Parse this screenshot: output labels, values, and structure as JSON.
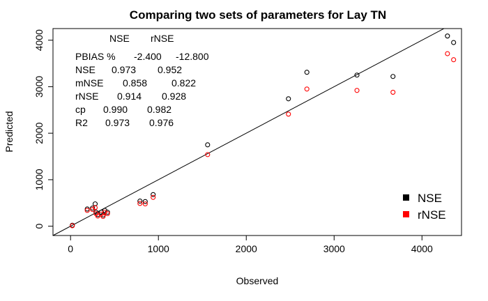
{
  "chart_data": {
    "type": "scatter",
    "title": "Comparing two sets of parameters for Lay TN",
    "xlabel": "Observed",
    "ylabel": "Predicted",
    "xlim": [
      -200,
      4450
    ],
    "ylim": [
      -200,
      4250
    ],
    "x_ticks": [
      0,
      1000,
      2000,
      3000,
      4000
    ],
    "y_ticks": [
      0,
      1000,
      2000,
      3000,
      4000
    ],
    "x_tick_labels": [
      "0",
      "1000",
      "2000",
      "3000",
      "4000"
    ],
    "y_tick_labels": [
      "0",
      "1000",
      "2000",
      "3000",
      "4000"
    ],
    "reference_line": "1:1",
    "grid": false,
    "legend_position": "bottom-right",
    "series": [
      {
        "name": "NSE",
        "color": "#000000",
        "x": [
          20,
          190,
          250,
          280,
          290,
          310,
          350,
          370,
          390,
          420,
          790,
          850,
          940,
          1560,
          2480,
          2690,
          3260,
          3670,
          4290,
          4360
        ],
        "y": [
          20,
          370,
          390,
          480,
          300,
          250,
          300,
          240,
          340,
          300,
          540,
          530,
          680,
          1750,
          2740,
          3310,
          3250,
          3220,
          4090,
          3950
        ]
      },
      {
        "name": "rNSE",
        "color": "#ff0000",
        "x": [
          20,
          190,
          250,
          280,
          290,
          310,
          350,
          370,
          390,
          420,
          790,
          850,
          940,
          1560,
          2480,
          2690,
          3260,
          3670,
          4290,
          4360
        ],
        "y": [
          10,
          340,
          360,
          400,
          270,
          220,
          260,
          210,
          300,
          270,
          490,
          480,
          620,
          1540,
          2410,
          2950,
          2920,
          2880,
          3710,
          3580
        ]
      }
    ],
    "stats_table": {
      "header": [
        "NSE",
        "rNSE"
      ],
      "rows": [
        {
          "label": "PBIAS %",
          "nse": "-2.400",
          "rnse": "-12.800"
        },
        {
          "label": "NSE",
          "nse": "0.973",
          "rnse": "0.952"
        },
        {
          "label": "mNSE",
          "nse": "0.858",
          "rnse": "0.822"
        },
        {
          "label": "rNSE",
          "nse": "0.914",
          "rnse": "0.928"
        },
        {
          "label": "cp",
          "nse": "0.990",
          "rnse": "0.982"
        },
        {
          "label": "R2",
          "nse": "0.973",
          "rnse": "0.976"
        }
      ]
    }
  }
}
